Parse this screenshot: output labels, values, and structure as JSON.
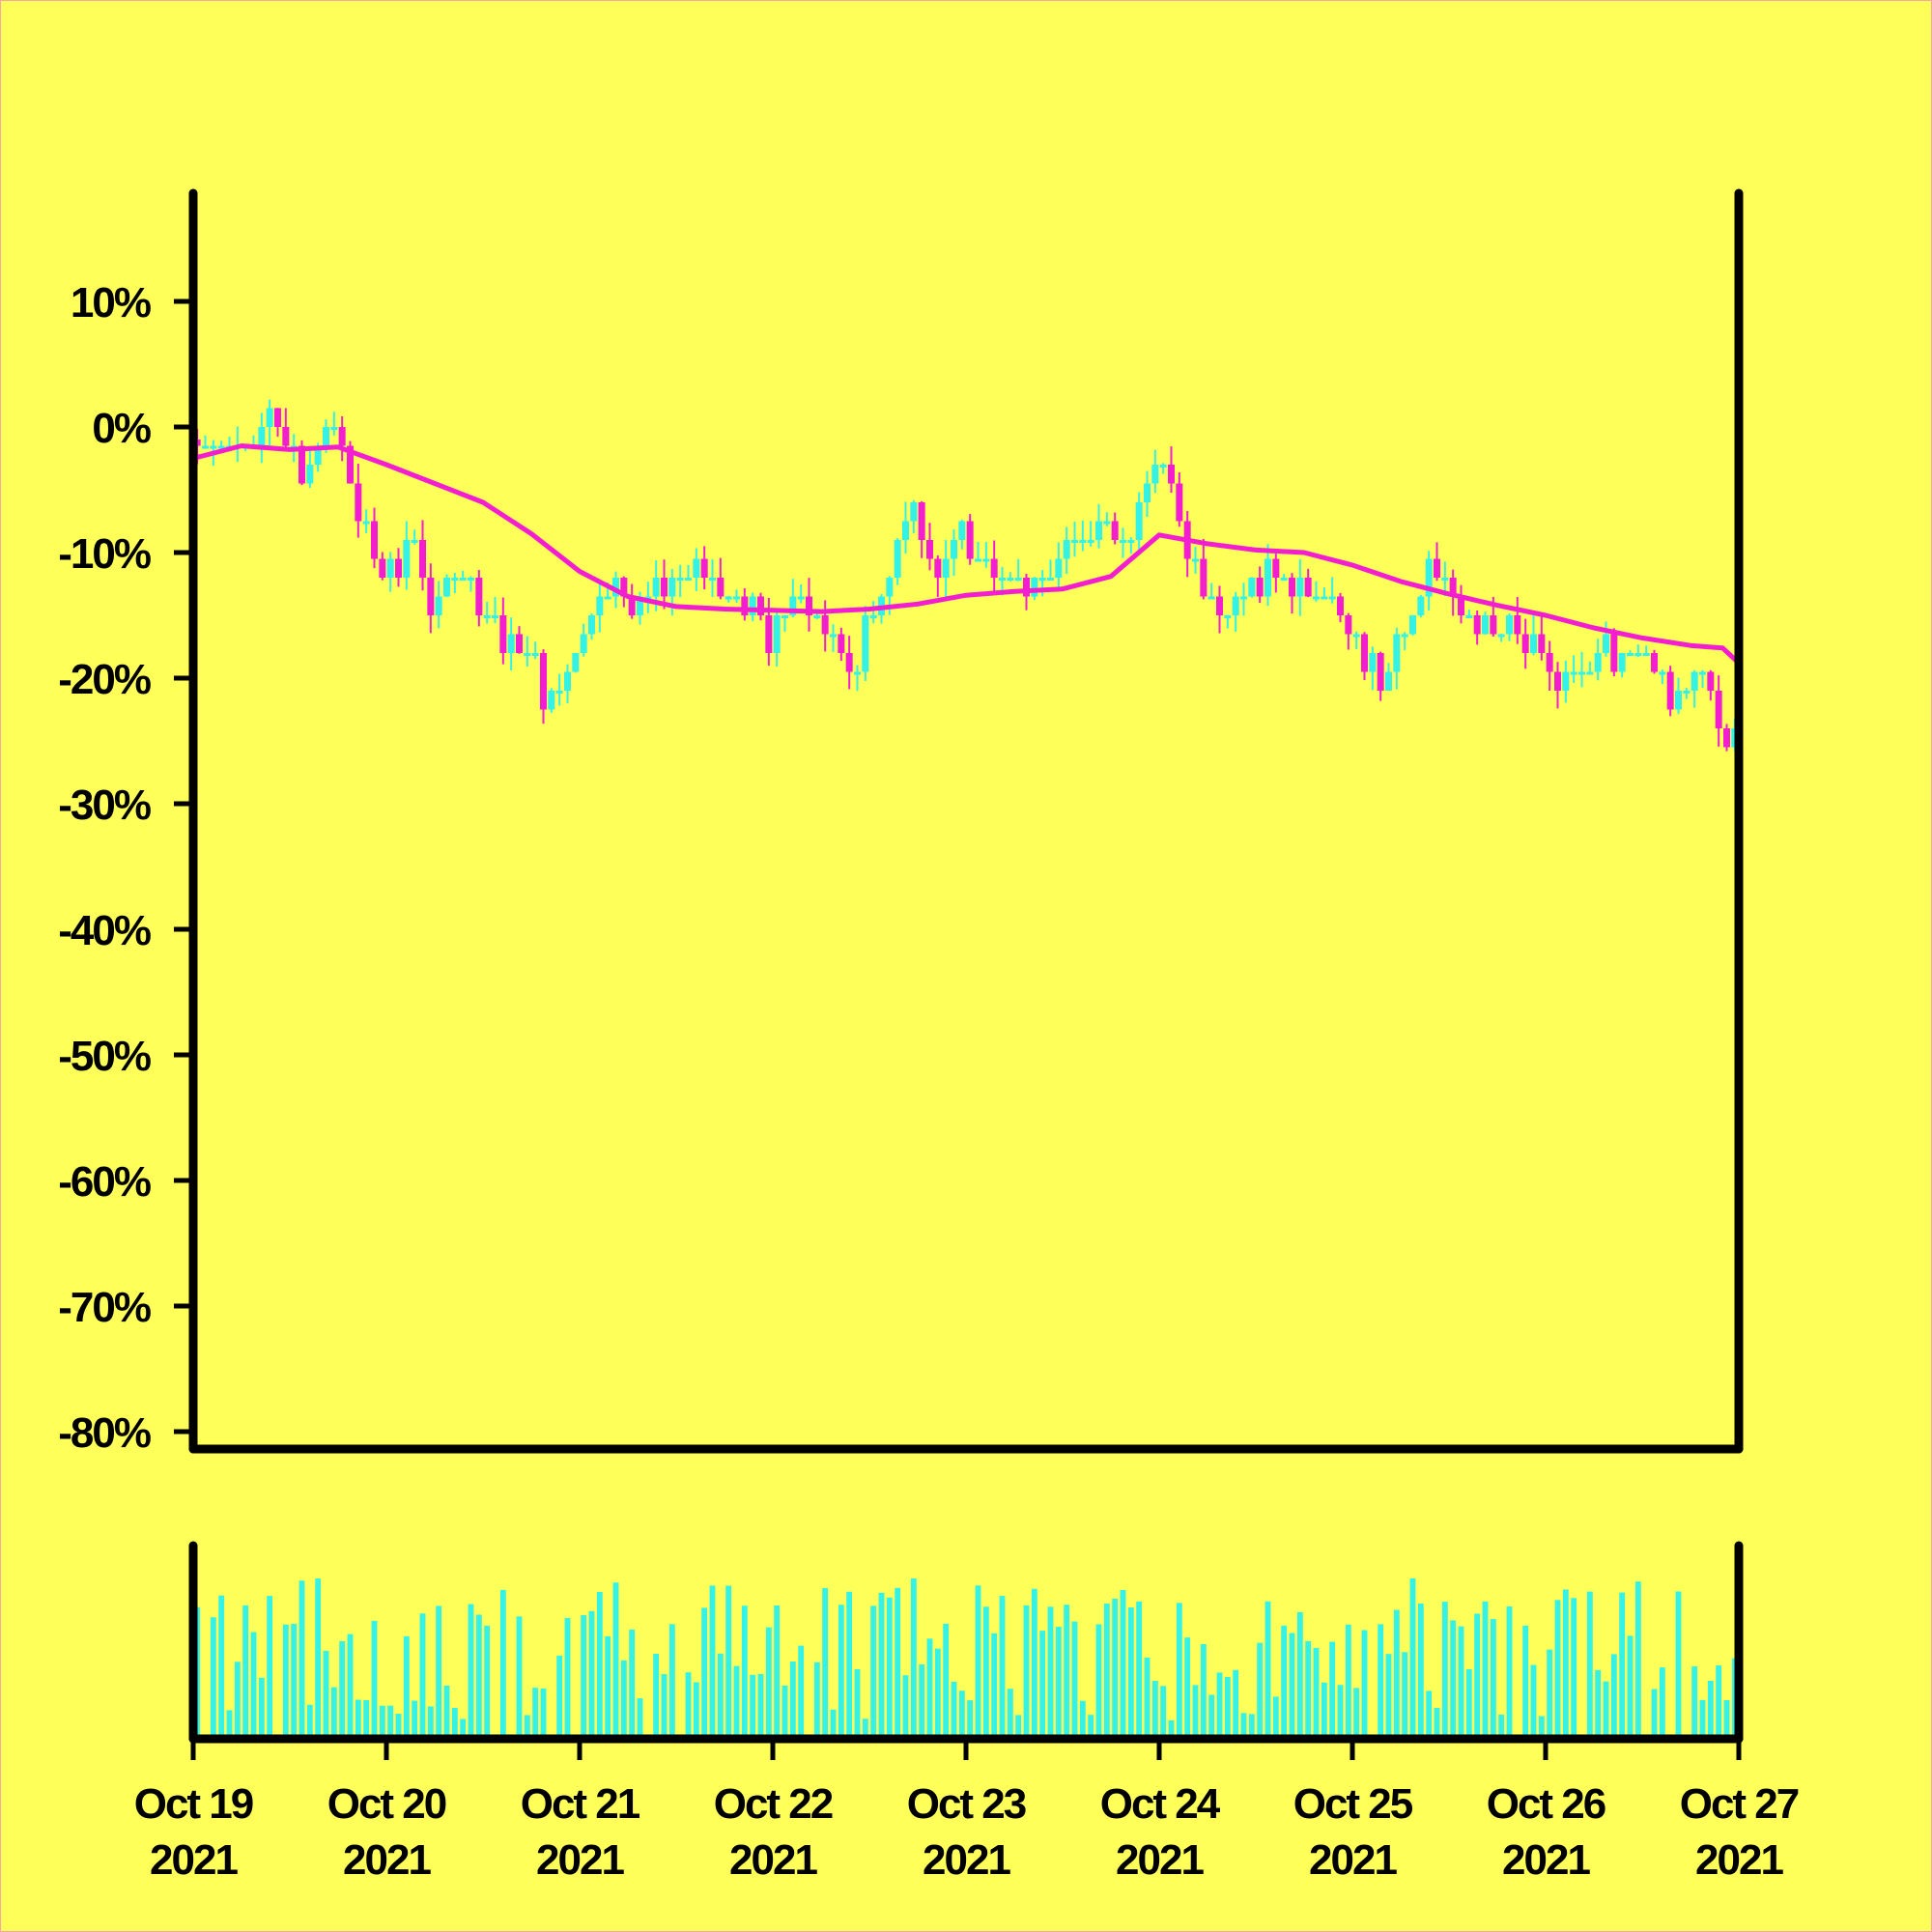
{
  "chart_data": {
    "type": "candlestick",
    "title": "",
    "xlabel": "",
    "ylabel": "",
    "y_unit": "%",
    "ylim": [
      -82,
      18
    ],
    "yticks": [
      10,
      0,
      -10,
      -20,
      -30,
      -40,
      -50,
      -60,
      -70,
      -80
    ],
    "ytick_labels": [
      "10%",
      "0%",
      "-10%",
      "-20%",
      "-30%",
      "-40%",
      "-50%",
      "-60%",
      "-70%",
      "-80%"
    ],
    "x_range": [
      "2021-10-19",
      "2021-10-27"
    ],
    "xticks": [
      {
        "line1": "Oct 19",
        "line2": "2021"
      },
      {
        "line1": "Oct 20",
        "line2": "2021"
      },
      {
        "line1": "Oct 21",
        "line2": "2021"
      },
      {
        "line1": "Oct 22",
        "line2": "2021"
      },
      {
        "line1": "Oct 23",
        "line2": "2021"
      },
      {
        "line1": "Oct 24",
        "line2": "2021"
      },
      {
        "line1": "Oct 25",
        "line2": "2021"
      },
      {
        "line1": "Oct 26",
        "line2": "2021"
      },
      {
        "line1": "Oct 27",
        "line2": "2021"
      }
    ],
    "candle_interval": "hourly",
    "close_path": [
      [
        "2021-10-19T00:00",
        -1
      ],
      [
        "2021-10-19T06:00",
        -2
      ],
      [
        "2021-10-19T10:00",
        1
      ],
      [
        "2021-10-19T14:00",
        -3
      ],
      [
        "2021-10-19T18:00",
        1
      ],
      [
        "2021-10-19T22:00",
        -9
      ],
      [
        "2021-10-20T00:00",
        -13
      ],
      [
        "2021-10-20T04:00",
        -9
      ],
      [
        "2021-10-20T06:00",
        -14
      ],
      [
        "2021-10-20T10:00",
        -12
      ],
      [
        "2021-10-20T14:00",
        -16
      ],
      [
        "2021-10-20T18:00",
        -18
      ],
      [
        "2021-10-20T21:00",
        -22
      ],
      [
        "2021-10-21T00:00",
        -18
      ],
      [
        "2021-10-21T03:00",
        -12
      ],
      [
        "2021-10-21T08:00",
        -14
      ],
      [
        "2021-10-21T14:00",
        -11
      ],
      [
        "2021-10-21T20:00",
        -13
      ],
      [
        "2021-10-22T00:00",
        -17
      ],
      [
        "2021-10-22T04:00",
        -14
      ],
      [
        "2021-10-22T10:00",
        -19
      ],
      [
        "2021-10-22T14:00",
        -14
      ],
      [
        "2021-10-22T18:00",
        -6
      ],
      [
        "2021-10-22T20:00",
        -12
      ],
      [
        "2021-10-23T00:00",
        -8
      ],
      [
        "2021-10-23T04:00",
        -12
      ],
      [
        "2021-10-23T10:00",
        -13
      ],
      [
        "2021-10-23T14:00",
        -9
      ],
      [
        "2021-10-23T18:00",
        -7
      ],
      [
        "2021-10-23T20:00",
        -10
      ],
      [
        "2021-10-24T00:00",
        -2
      ],
      [
        "2021-10-24T02:00",
        -5
      ],
      [
        "2021-10-24T04:00",
        -10
      ],
      [
        "2021-10-24T08:00",
        -15
      ],
      [
        "2021-10-24T14:00",
        -12
      ],
      [
        "2021-10-24T20:00",
        -14
      ],
      [
        "2021-10-25T00:00",
        -16
      ],
      [
        "2021-10-25T04:00",
        -20
      ],
      [
        "2021-10-25T10:00",
        -11
      ],
      [
        "2021-10-25T14:00",
        -15
      ],
      [
        "2021-10-25T20:00",
        -16
      ],
      [
        "2021-10-26T00:00",
        -19
      ],
      [
        "2021-10-26T04:00",
        -21
      ],
      [
        "2021-10-26T08:00",
        -18
      ],
      [
        "2021-10-26T12:00",
        -17
      ],
      [
        "2021-10-26T16:00",
        -22
      ],
      [
        "2021-10-26T20:00",
        -20
      ],
      [
        "2021-10-26T23:00",
        -25
      ]
    ],
    "moving_average": [
      [
        "2021-10-19T00:00",
        -2.5
      ],
      [
        "2021-10-19T06:00",
        -1.5
      ],
      [
        "2021-10-19T12:00",
        -1.8
      ],
      [
        "2021-10-19T18:00",
        -1.6
      ],
      [
        "2021-10-20T00:00",
        -3
      ],
      [
        "2021-10-20T06:00",
        -4.5
      ],
      [
        "2021-10-20T12:00",
        -6
      ],
      [
        "2021-10-20T18:00",
        -8.5
      ],
      [
        "2021-10-21T00:00",
        -11.5
      ],
      [
        "2021-10-21T06:00",
        -13.5
      ],
      [
        "2021-10-21T12:00",
        -14.3
      ],
      [
        "2021-10-21T18:00",
        -14.5
      ],
      [
        "2021-10-22T00:00",
        -14.6
      ],
      [
        "2021-10-22T06:00",
        -14.7
      ],
      [
        "2021-10-22T12:00",
        -14.5
      ],
      [
        "2021-10-22T18:00",
        -14.1
      ],
      [
        "2021-10-23T00:00",
        -13.4
      ],
      [
        "2021-10-23T06:00",
        -13.1
      ],
      [
        "2021-10-23T12:00",
        -12.9
      ],
      [
        "2021-10-23T18:00",
        -11.9
      ],
      [
        "2021-10-24T00:00",
        -8.6
      ],
      [
        "2021-10-24T06:00",
        -9.3
      ],
      [
        "2021-10-24T12:00",
        -9.8
      ],
      [
        "2021-10-24T18:00",
        -10
      ],
      [
        "2021-10-25T00:00",
        -11
      ],
      [
        "2021-10-25T06:00",
        -12.3
      ],
      [
        "2021-10-25T12:00",
        -13.3
      ],
      [
        "2021-10-25T18:00",
        -14.2
      ],
      [
        "2021-10-26T00:00",
        -15
      ],
      [
        "2021-10-26T06:00",
        -16
      ],
      [
        "2021-10-26T12:00",
        -16.8
      ],
      [
        "2021-10-26T18:00",
        -17.4
      ],
      [
        "2021-10-26T22:00",
        -17.6
      ],
      [
        "2021-10-27T00:00",
        -18.8
      ]
    ],
    "volume_panel": {
      "ylabel": "",
      "scale": "relative",
      "max_relative": 1.0
    },
    "colors": {
      "background": "#ffff5a",
      "up": "#35f2e6",
      "down": "#f31ed0",
      "moving_average": "#f31ed0",
      "volume": "#35f2e6",
      "axis": "#000000"
    },
    "grid": false,
    "legend": "none"
  }
}
